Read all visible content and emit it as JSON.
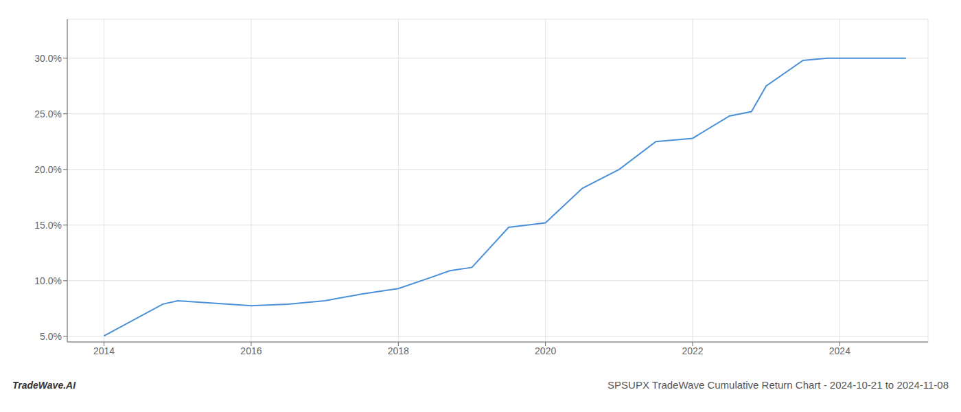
{
  "chart_data": {
    "type": "line",
    "title": "SPSUPX TradeWave Cumulative Return Chart - 2024-10-21 to 2024-11-08",
    "annotations": [
      "TradeWave.AI"
    ],
    "x": [
      2014.0,
      2014.8,
      2015.0,
      2015.8,
      2016.0,
      2016.5,
      2017.0,
      2017.5,
      2018.0,
      2018.4,
      2018.7,
      2019.0,
      2019.5,
      2020.0,
      2020.5,
      2021.0,
      2021.5,
      2022.0,
      2022.5,
      2022.8,
      2023.0,
      2023.5,
      2023.83,
      2024.0,
      2024.9
    ],
    "values": [
      5.05,
      7.9,
      8.2,
      7.85,
      7.75,
      7.9,
      8.2,
      8.8,
      9.3,
      10.2,
      10.9,
      11.2,
      14.8,
      15.2,
      18.3,
      20.0,
      22.5,
      22.8,
      24.8,
      25.2,
      27.5,
      29.8,
      30.0,
      30.0,
      30.0
    ],
    "color": "#4a90d9",
    "xlim": [
      2013.5,
      2025.2
    ],
    "ylim": [
      4.5,
      33.5
    ],
    "xticks": [
      2014,
      2016,
      2018,
      2020,
      2022,
      2024
    ],
    "yticks": [
      {
        "value": 5.0,
        "label": "5.0%"
      },
      {
        "value": 10.0,
        "label": "10.0%"
      },
      {
        "value": 15.0,
        "label": "15.0%"
      },
      {
        "value": 20.0,
        "label": "20.0%"
      },
      {
        "value": 25.0,
        "label": "25.0%"
      },
      {
        "value": 30.0,
        "label": "30.0%"
      }
    ],
    "grid": true
  }
}
